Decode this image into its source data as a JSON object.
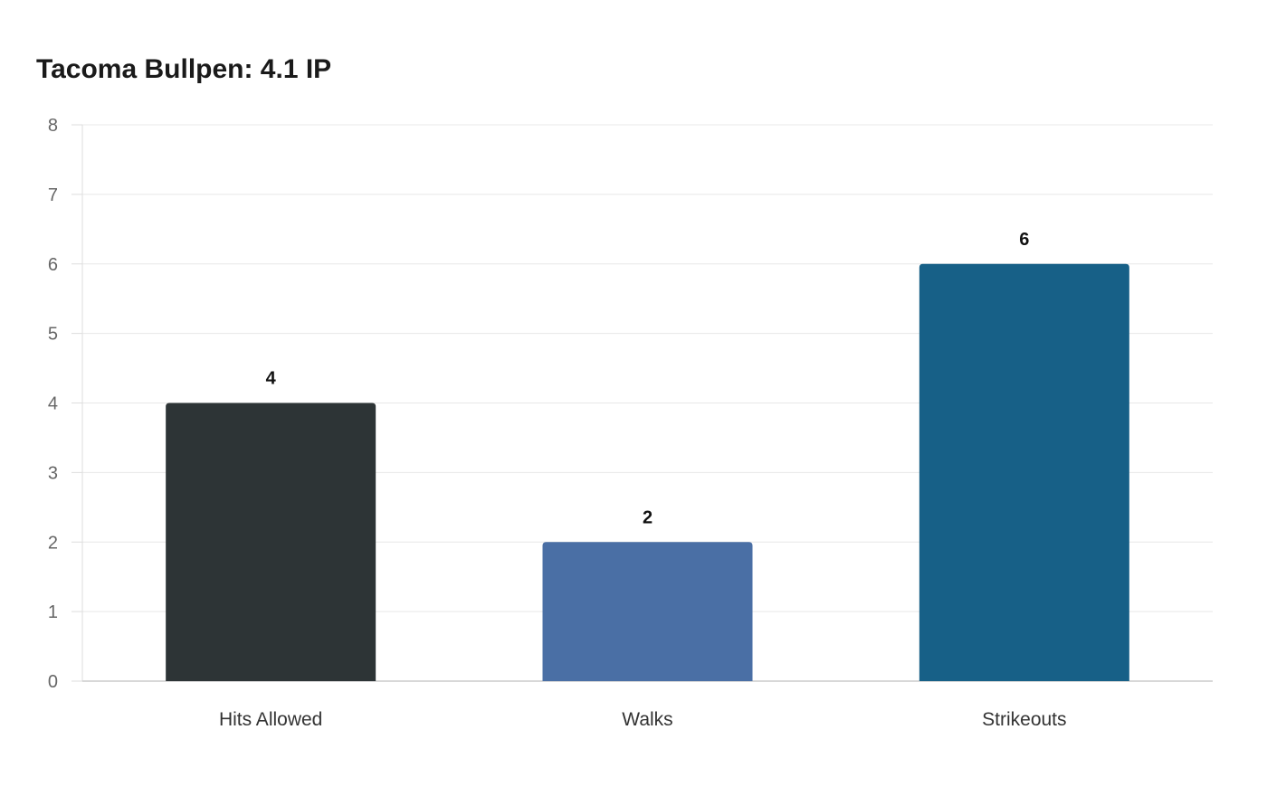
{
  "chart_data": {
    "type": "bar",
    "title": "Tacoma Bullpen: 4.1 IP",
    "categories": [
      "Hits Allowed",
      "Walks",
      "Strikeouts"
    ],
    "values": [
      4,
      2,
      6
    ],
    "colors": [
      "#2d3436",
      "#4a6fa5",
      "#176087"
    ],
    "xlabel": "",
    "ylabel": "",
    "ylim": [
      0,
      8
    ],
    "yticks": [
      "0",
      "1",
      "2",
      "3",
      "4",
      "5",
      "6",
      "7",
      "8"
    ],
    "grid": true,
    "data_labels": [
      "4",
      "2",
      "6"
    ]
  }
}
